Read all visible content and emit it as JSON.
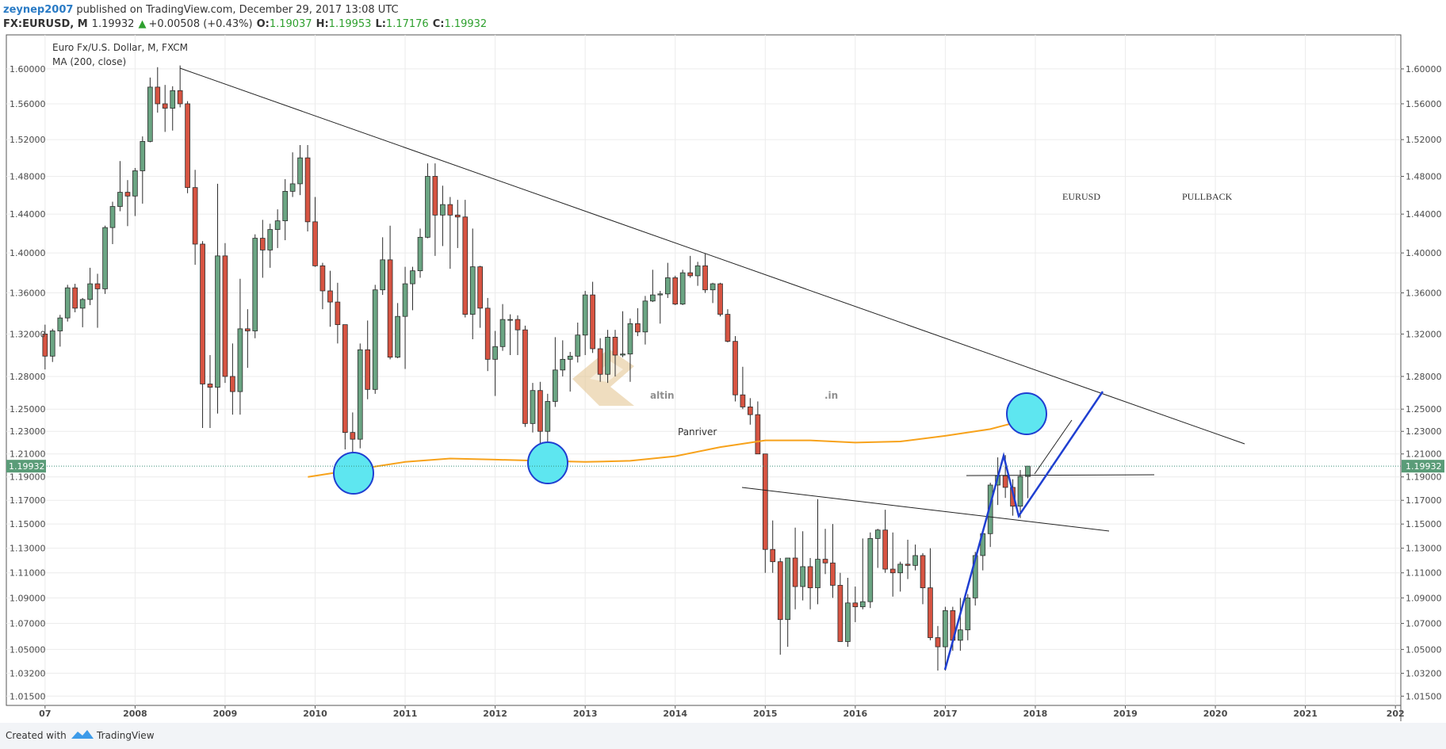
{
  "header": {
    "author": "zeynep2007",
    "published": "published on TradingView.com, December 29, 2017 13:08 UTC",
    "symbol": "FX:EURUSD, M",
    "last": "1.19932",
    "arrow": "▲",
    "change": "+0.00508 (+0.43%)",
    "o_label": "O:",
    "o": "1.19037",
    "h_label": "H:",
    "h": "1.19953",
    "l_label": "L:",
    "l": "1.17176",
    "c_label": "C:",
    "c": "1.19932"
  },
  "footer": {
    "created": "Created with",
    "brand": "TradingView"
  },
  "chart_data": {
    "type": "candlestick",
    "title": "Euro Fx/U.S. Dollar, M, FXCM",
    "indicator": "MA (200, close)",
    "log_y": true,
    "grid": true,
    "up_color": "#6ba583",
    "down_color": "#d75442",
    "edge_color": "#2b2b2b",
    "ma_color": "#f7a21b",
    "xlim": [
      2006.57,
      2022.06
    ],
    "ylim": [
      1.0082,
      1.64
    ],
    "xticks": [
      {
        "value": 2007,
        "label": "07"
      },
      2008,
      2009,
      2010,
      2011,
      2012,
      2013,
      2014,
      2015,
      2016,
      2017,
      2018,
      2019,
      2020,
      2021,
      {
        "value": 2022,
        "label": "202"
      }
    ],
    "yticks": [
      {
        "value": 1.6,
        "label": "1.60000"
      },
      {
        "value": 1.56,
        "label": "1.56000"
      },
      {
        "value": 1.52,
        "label": "1.52000"
      },
      {
        "value": 1.48,
        "label": "1.48000"
      },
      {
        "value": 1.44,
        "label": "1.44000"
      },
      {
        "value": 1.4,
        "label": "1.40000"
      },
      {
        "value": 1.36,
        "label": "1.36000"
      },
      {
        "value": 1.32,
        "label": "1.32000"
      },
      {
        "value": 1.28,
        "label": "1.28000"
      },
      {
        "value": 1.25,
        "label": "1.25000"
      },
      {
        "value": 1.23,
        "label": "1.23000"
      },
      {
        "value": 1.21,
        "label": "1.21000"
      },
      {
        "value": 1.19,
        "label": "1.19000"
      },
      {
        "value": 1.17,
        "label": "1.17000"
      },
      {
        "value": 1.15,
        "label": "1.15000"
      },
      {
        "value": 1.13,
        "label": "1.13000"
      },
      {
        "value": 1.11,
        "label": "1.11000"
      },
      {
        "value": 1.09,
        "label": "1.09000"
      },
      {
        "value": 1.07,
        "label": "1.07000"
      },
      {
        "value": 1.05,
        "label": "1.05000"
      },
      {
        "value": 1.032,
        "label": "1.03200"
      },
      {
        "value": 1.015,
        "label": "1.01500"
      }
    ],
    "last_price": {
      "value": 1.19932,
      "label": "1.19932"
    },
    "x": [
      2007,
      2007.083,
      2007.167,
      2007.25,
      2007.333,
      2007.417,
      2007.5,
      2007.583,
      2007.667,
      2007.75,
      2007.833,
      2007.917,
      2008,
      2008.083,
      2008.167,
      2008.25,
      2008.333,
      2008.417,
      2008.5,
      2008.583,
      2008.667,
      2008.75,
      2008.833,
      2008.917,
      2009,
      2009.083,
      2009.167,
      2009.25,
      2009.333,
      2009.417,
      2009.5,
      2009.583,
      2009.667,
      2009.75,
      2009.833,
      2009.917,
      2010,
      2010.083,
      2010.167,
      2010.25,
      2010.333,
      2010.417,
      2010.5,
      2010.583,
      2010.667,
      2010.75,
      2010.833,
      2010.917,
      2011,
      2011.083,
      2011.167,
      2011.25,
      2011.333,
      2011.417,
      2011.5,
      2011.583,
      2011.667,
      2011.75,
      2011.833,
      2011.917,
      2012,
      2012.083,
      2012.167,
      2012.25,
      2012.333,
      2012.417,
      2012.5,
      2012.583,
      2012.667,
      2012.75,
      2012.833,
      2012.917,
      2013,
      2013.083,
      2013.167,
      2013.25,
      2013.333,
      2013.417,
      2013.5,
      2013.583,
      2013.667,
      2013.75,
      2013.833,
      2013.917,
      2014,
      2014.083,
      2014.167,
      2014.25,
      2014.333,
      2014.417,
      2014.5,
      2014.583,
      2014.667,
      2014.75,
      2014.833,
      2014.917,
      2015,
      2015.083,
      2015.167,
      2015.25,
      2015.333,
      2015.417,
      2015.5,
      2015.583,
      2015.667,
      2015.75,
      2015.833,
      2015.917,
      2016,
      2016.083,
      2016.167,
      2016.25,
      2016.333,
      2016.417,
      2016.5,
      2016.583,
      2016.667,
      2016.75,
      2016.833,
      2016.917,
      2017,
      2017.083,
      2017.167,
      2017.25,
      2017.333,
      2017.417,
      2017.5,
      2017.583,
      2017.667,
      2017.75,
      2017.833,
      2017.917
    ],
    "open": [
      1.32,
      1.299,
      1.323,
      1.3355,
      1.365,
      1.345,
      1.3535,
      1.369,
      1.364,
      1.426,
      1.448,
      1.463,
      1.459,
      1.486,
      1.518,
      1.579,
      1.56,
      1.555,
      1.575,
      1.56,
      1.468,
      1.409,
      1.273,
      1.27,
      1.397,
      1.28,
      1.266,
      1.325,
      1.323,
      1.415,
      1.403,
      1.424,
      1.433,
      1.464,
      1.472,
      1.5,
      1.432,
      1.387,
      1.362,
      1.351,
      1.329,
      1.229,
      1.223,
      1.305,
      1.268,
      1.363,
      1.393,
      1.298,
      1.337,
      1.369,
      1.382,
      1.416,
      1.48,
      1.439,
      1.45,
      1.439,
      1.437,
      1.339,
      1.386,
      1.345,
      1.296,
      1.308,
      1.334,
      1.334,
      1.324,
      1.237,
      1.267,
      1.23,
      1.257,
      1.286,
      1.296,
      1.299,
      1.319,
      1.358,
      1.306,
      1.282,
      1.317,
      1.3,
      1.301,
      1.33,
      1.322,
      1.352,
      1.358,
      1.359,
      1.375,
      1.349,
      1.38,
      1.377,
      1.387,
      1.363,
      1.369,
      1.339,
      1.313,
      1.263,
      1.252,
      1.245,
      1.21,
      1.129,
      1.119,
      1.073,
      1.122,
      1.099,
      1.115,
      1.098,
      1.121,
      1.118,
      1.1,
      1.056,
      1.086,
      1.083,
      1.087,
      1.138,
      1.145,
      1.113,
      1.11,
      1.117,
      1.116,
      1.124,
      1.098,
      1.059,
      1.052,
      1.08,
      1.057,
      1.065,
      1.09,
      1.124,
      1.142,
      1.183,
      1.191,
      1.181,
      1.165,
      1.19037
    ],
    "high": [
      1.329,
      1.325,
      1.3385,
      1.368,
      1.369,
      1.355,
      1.385,
      1.379,
      1.428,
      1.453,
      1.4965,
      1.476,
      1.489,
      1.5235,
      1.59,
      1.602,
      1.5815,
      1.58,
      1.604,
      1.563,
      1.487,
      1.412,
      1.3,
      1.472,
      1.41,
      1.311,
      1.374,
      1.344,
      1.419,
      1.434,
      1.43,
      1.445,
      1.477,
      1.506,
      1.514,
      1.514,
      1.458,
      1.39,
      1.382,
      1.37,
      1.329,
      1.247,
      1.311,
      1.333,
      1.368,
      1.416,
      1.428,
      1.35,
      1.386,
      1.386,
      1.425,
      1.494,
      1.494,
      1.47,
      1.458,
      1.455,
      1.455,
      1.425,
      1.387,
      1.355,
      1.323,
      1.349,
      1.339,
      1.338,
      1.328,
      1.274,
      1.275,
      1.264,
      1.317,
      1.314,
      1.303,
      1.331,
      1.362,
      1.371,
      1.316,
      1.324,
      1.324,
      1.342,
      1.335,
      1.345,
      1.357,
      1.383,
      1.362,
      1.39,
      1.377,
      1.383,
      1.397,
      1.391,
      1.399,
      1.37,
      1.37,
      1.344,
      1.318,
      1.289,
      1.26,
      1.257,
      1.21,
      1.153,
      1.122,
      1.122,
      1.147,
      1.144,
      1.122,
      1.171,
      1.146,
      1.15,
      1.11,
      1.106,
      1.099,
      1.138,
      1.143,
      1.146,
      1.162,
      1.143,
      1.119,
      1.137,
      1.133,
      1.126,
      1.13,
      1.068,
      1.083,
      1.083,
      1.09,
      1.093,
      1.127,
      1.145,
      1.185,
      1.207,
      1.209,
      1.188,
      1.196,
      1.19953
    ],
    "low": [
      1.2865,
      1.2935,
      1.308,
      1.332,
      1.341,
      1.3265,
      1.348,
      1.326,
      1.359,
      1.409,
      1.443,
      1.4275,
      1.438,
      1.451,
      1.517,
      1.55,
      1.5285,
      1.53,
      1.556,
      1.462,
      1.388,
      1.233,
      1.233,
      1.246,
      1.274,
      1.245,
      1.245,
      1.288,
      1.316,
      1.375,
      1.385,
      1.405,
      1.413,
      1.458,
      1.46,
      1.422,
      1.386,
      1.344,
      1.327,
      1.311,
      1.214,
      1.188,
      1.215,
      1.259,
      1.264,
      1.358,
      1.296,
      1.297,
      1.287,
      1.343,
      1.375,
      1.415,
      1.397,
      1.407,
      1.384,
      1.405,
      1.336,
      1.315,
      1.326,
      1.285,
      1.262,
      1.304,
      1.3,
      1.3,
      1.234,
      1.229,
      1.204,
      1.213,
      1.252,
      1.28,
      1.266,
      1.293,
      1.3,
      1.302,
      1.275,
      1.274,
      1.28,
      1.298,
      1.275,
      1.318,
      1.31,
      1.351,
      1.33,
      1.355,
      1.348,
      1.348,
      1.375,
      1.367,
      1.36,
      1.35,
      1.337,
      1.312,
      1.257,
      1.25,
      1.236,
      1.21,
      1.11,
      1.11,
      1.046,
      1.052,
      1.081,
      1.088,
      1.081,
      1.085,
      1.109,
      1.09,
      1.056,
      1.052,
      1.071,
      1.081,
      1.082,
      1.114,
      1.11,
      1.091,
      1.095,
      1.105,
      1.112,
      1.085,
      1.057,
      1.034,
      1.034,
      1.049,
      1.049,
      1.057,
      1.084,
      1.112,
      1.131,
      1.166,
      1.172,
      1.157,
      1.155,
      1.17176
    ],
    "close": [
      1.299,
      1.323,
      1.3355,
      1.365,
      1.345,
      1.3535,
      1.369,
      1.364,
      1.426,
      1.448,
      1.463,
      1.459,
      1.486,
      1.518,
      1.579,
      1.56,
      1.555,
      1.575,
      1.56,
      1.468,
      1.409,
      1.273,
      1.27,
      1.397,
      1.28,
      1.266,
      1.325,
      1.323,
      1.415,
      1.403,
      1.424,
      1.433,
      1.464,
      1.472,
      1.5,
      1.432,
      1.387,
      1.362,
      1.351,
      1.329,
      1.229,
      1.223,
      1.305,
      1.268,
      1.363,
      1.393,
      1.298,
      1.337,
      1.369,
      1.382,
      1.416,
      1.48,
      1.439,
      1.45,
      1.439,
      1.437,
      1.339,
      1.386,
      1.345,
      1.296,
      1.308,
      1.334,
      1.334,
      1.324,
      1.237,
      1.267,
      1.23,
      1.257,
      1.286,
      1.296,
      1.299,
      1.319,
      1.358,
      1.306,
      1.282,
      1.317,
      1.3,
      1.301,
      1.33,
      1.322,
      1.352,
      1.358,
      1.359,
      1.375,
      1.349,
      1.38,
      1.377,
      1.387,
      1.363,
      1.369,
      1.339,
      1.313,
      1.263,
      1.252,
      1.245,
      1.21,
      1.129,
      1.119,
      1.073,
      1.122,
      1.099,
      1.115,
      1.098,
      1.121,
      1.118,
      1.1,
      1.056,
      1.086,
      1.083,
      1.087,
      1.138,
      1.145,
      1.113,
      1.11,
      1.117,
      1.116,
      1.124,
      1.098,
      1.059,
      1.052,
      1.08,
      1.057,
      1.065,
      1.09,
      1.124,
      1.142,
      1.183,
      1.191,
      1.181,
      1.165,
      1.19037,
      1.19932
    ],
    "ma": {
      "x": [
        2009.92,
        2010.5,
        2011,
        2011.5,
        2012,
        2012.5,
        2013,
        2013.5,
        2014,
        2014.5,
        2015,
        2015.5,
        2016,
        2016.5,
        2017,
        2017.5,
        2017.92
      ],
      "values": [
        1.19,
        1.197,
        1.203,
        1.206,
        1.205,
        1.204,
        1.203,
        1.204,
        1.208,
        1.216,
        1.222,
        1.222,
        1.22,
        1.221,
        1.226,
        1.232,
        1.241
      ]
    },
    "annotations": [
      "EURUSD",
      "PULLBACK"
    ],
    "watermark": {
      "brand": "altin",
      "domain": ".in",
      "author": "Panriver"
    }
  }
}
